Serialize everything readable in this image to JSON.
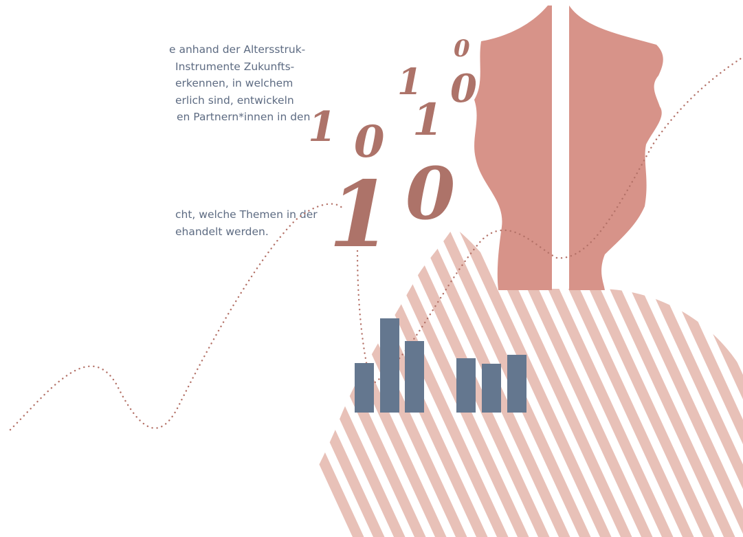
{
  "paragraph1": {
    "lines": [
      "e anhand der Altersstruk-",
      " Instrumente Zukunfts-",
      "erkennen, in welchem",
      "erlich sind, entwickeln",
      "en Partnern*innen in den"
    ]
  },
  "paragraph2": {
    "lines": [
      "cht, welche Themen in der",
      "ehandelt werden."
    ]
  },
  "digits": [
    "0",
    "1",
    "0",
    "1",
    "0",
    "1",
    "1",
    "0"
  ],
  "colors": {
    "text": "#5d6b82",
    "figure": "#d79389",
    "stripes": "#e8c1b8",
    "digits": "#ad7369",
    "bars": "#64778f",
    "dots": "#b47268"
  }
}
